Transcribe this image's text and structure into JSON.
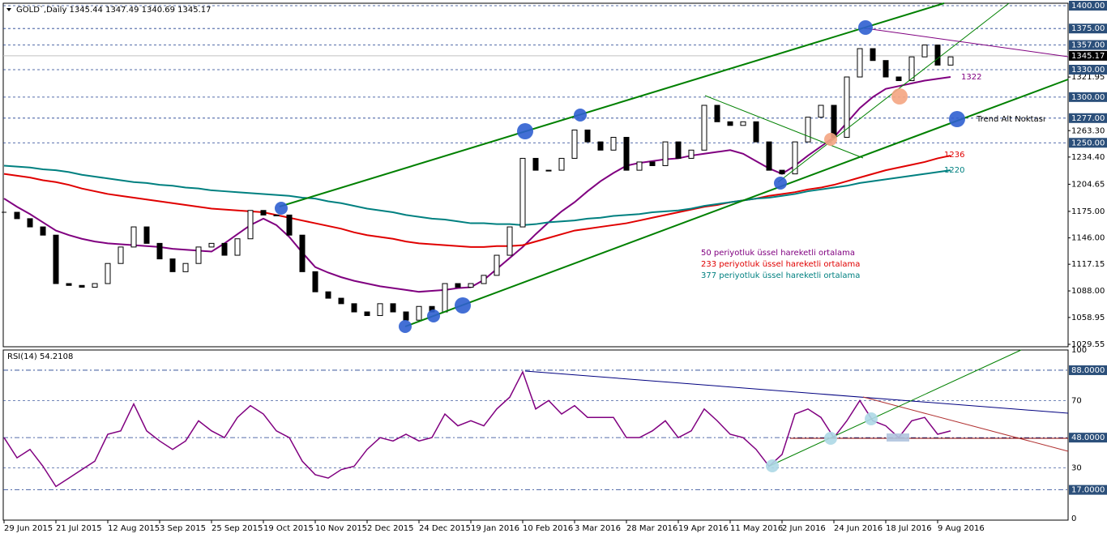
{
  "chart_data": [
    {
      "type": "candlestick",
      "title": "GOLD`,Daily  1345.44 1347.49 1340.69 1345.17",
      "values": [
        1174,
        1167,
        1158,
        1149,
        1096,
        1094,
        1092,
        1096,
        1118,
        1136,
        1158,
        1140,
        1123,
        1109,
        1118,
        1136,
        1140,
        1127,
        1145,
        1176,
        1171,
        1171,
        1149,
        1109,
        1087,
        1080,
        1074,
        1065,
        1061,
        1074,
        1065,
        1056,
        1071,
        1065,
        1096,
        1092,
        1096,
        1105,
        1127,
        1158,
        1233,
        1220,
        1220,
        1233,
        1264,
        1251,
        1242,
        1256,
        1220,
        1229,
        1225,
        1251,
        1233,
        1242,
        1291,
        1273,
        1269,
        1273,
        1251,
        1220,
        1216,
        1251,
        1278,
        1291,
        1256,
        1322,
        1353,
        1340,
        1322,
        1318,
        1344,
        1357,
        1335,
        1344
      ],
      "series": [
        {
          "name": "50 periyotluk üssel hareketli ortalama",
          "color": "#800080",
          "values": [
            1189,
            1180,
            1172,
            1163,
            1154,
            1149,
            1145,
            1142,
            1140,
            1139,
            1138,
            1137,
            1136,
            1134,
            1133,
            1132,
            1131,
            1140,
            1150,
            1160,
            1167,
            1160,
            1147,
            1130,
            1114,
            1108,
            1103,
            1099,
            1096,
            1093,
            1091,
            1089,
            1087,
            1088,
            1089,
            1091,
            1092,
            1100,
            1112,
            1124,
            1136,
            1150,
            1163,
            1175,
            1185,
            1197,
            1208,
            1217,
            1225,
            1228,
            1230,
            1232,
            1233,
            1236,
            1238,
            1240,
            1242,
            1238,
            1230,
            1222,
            1216,
            1225,
            1236,
            1246,
            1256,
            1272,
            1288,
            1300,
            1309,
            1312,
            1315,
            1318,
            1320,
            1322
          ]
        },
        {
          "name": "233  periyotluk üssel hareketli ortalama",
          "color": "#e00000",
          "values": [
            1216,
            1214,
            1212,
            1209,
            1207,
            1204,
            1200,
            1197,
            1194,
            1192,
            1190,
            1188,
            1186,
            1184,
            1182,
            1180,
            1178,
            1177,
            1176,
            1175,
            1174,
            1171,
            1168,
            1165,
            1162,
            1159,
            1156,
            1152,
            1149,
            1147,
            1145,
            1142,
            1140,
            1139,
            1138,
            1137,
            1136,
            1136,
            1137,
            1137,
            1138,
            1142,
            1146,
            1150,
            1154,
            1156,
            1158,
            1160,
            1162,
            1165,
            1168,
            1171,
            1174,
            1177,
            1180,
            1182,
            1185,
            1187,
            1189,
            1192,
            1194,
            1196,
            1199,
            1201,
            1204,
            1208,
            1212,
            1216,
            1220,
            1223,
            1226,
            1229,
            1233,
            1236
          ]
        },
        {
          "name": "377  periyotluk üssel hareketli ortalama",
          "color": "#008080",
          "values": [
            1225,
            1224,
            1223,
            1221,
            1220,
            1218,
            1215,
            1213,
            1211,
            1209,
            1207,
            1206,
            1204,
            1203,
            1201,
            1200,
            1198,
            1197,
            1196,
            1195,
            1194,
            1193,
            1192,
            1190,
            1189,
            1186,
            1184,
            1181,
            1178,
            1176,
            1174,
            1171,
            1169,
            1167,
            1166,
            1164,
            1162,
            1162,
            1161,
            1161,
            1160,
            1161,
            1163,
            1164,
            1165,
            1167,
            1168,
            1170,
            1171,
            1172,
            1174,
            1175,
            1176,
            1178,
            1181,
            1183,
            1185,
            1187,
            1189,
            1190,
            1192,
            1194,
            1197,
            1199,
            1201,
            1203,
            1206,
            1208,
            1210,
            1212,
            1214,
            1216,
            1218,
            1220
          ]
        }
      ],
      "ylim": [
        1026.9,
        1402.66
      ],
      "yticks": [
        {
          "value": 1321.95,
          "label": "1321.95"
        },
        {
          "value": 1263.3,
          "label": "1263.30"
        },
        {
          "value": 1234.4,
          "label": "1234.40"
        },
        {
          "value": 1204.65,
          "label": "1204.65"
        },
        {
          "value": 1175,
          "label": "1175.00"
        },
        {
          "value": 1146,
          "label": "1146.00"
        },
        {
          "value": 1117.15,
          "label": "1117.15"
        },
        {
          "value": 1088,
          "label": "1088.00"
        },
        {
          "value": 1058.95,
          "label": "1058.95"
        },
        {
          "value": 1029.55,
          "label": "1029.55"
        }
      ],
      "levels": [
        {
          "value": 1400,
          "label": "1400.00"
        },
        {
          "value": 1375,
          "label": "1375.00"
        },
        {
          "value": 1357,
          "label": "1357.00"
        },
        {
          "value": 1330,
          "label": "1330.00"
        },
        {
          "value": 1300,
          "label": "1300.00"
        },
        {
          "value": 1277,
          "label": "1277.00"
        },
        {
          "value": 1250,
          "label": "1250.00"
        }
      ],
      "current": {
        "value": 1345.17,
        "label": "1345.17"
      },
      "annotation": "Trend Alt Noktası"
    },
    {
      "type": "line",
      "title": "RSI(14) 54.2108",
      "color": "#800080",
      "categories": [
        "29 Jun 2015",
        null,
        null,
        null,
        "21 Jul 2015",
        null,
        null,
        null,
        "12 Aug 2015",
        null,
        null,
        null,
        "3 Sep 2015",
        null,
        null,
        null,
        "25 Sep 2015",
        null,
        null,
        null,
        "19 Oct 2015",
        null,
        null,
        null,
        "10 Nov 2015",
        null,
        null,
        null,
        "2 Dec 2015",
        null,
        null,
        null,
        "24 Dec 2015",
        null,
        null,
        null,
        "19 Jan 2016",
        null,
        null,
        null,
        "10 Feb 2016",
        null,
        null,
        null,
        "3 Mar 2016",
        null,
        null,
        null,
        "28 Mar 2016",
        null,
        null,
        null,
        "19 Apr 2016",
        null,
        null,
        null,
        "11 May 2016",
        null,
        null,
        null,
        "2 Jun 2016",
        null,
        null,
        null,
        "24 Jun 2016",
        null,
        null,
        null,
        "18 Jul 2016",
        null,
        null,
        null,
        "9 Aug 2016",
        null
      ],
      "values": [
        48,
        36,
        41,
        31,
        19,
        24,
        29,
        34,
        50,
        52,
        68,
        52,
        46,
        41,
        46,
        58,
        52,
        48,
        60,
        67,
        62,
        52,
        48,
        34,
        26,
        24,
        29,
        31,
        41,
        48,
        46,
        50,
        46,
        48,
        62,
        55,
        58,
        55,
        65,
        72,
        87,
        65,
        70,
        62,
        67,
        60,
        60,
        60,
        48,
        48,
        52,
        58,
        48,
        52,
        65,
        58,
        50,
        48,
        41,
        31,
        38,
        62,
        65,
        60,
        48,
        58,
        70,
        58,
        55,
        48,
        58,
        60,
        50,
        52
      ],
      "ylim": [
        0,
        100
      ],
      "yticks": [
        100,
        70,
        30,
        0
      ],
      "levels": [
        {
          "value": 88,
          "label": "88.0000"
        },
        {
          "value": 48,
          "label": "48.0000"
        },
        {
          "value": 17,
          "label": "17.0000"
        }
      ]
    }
  ]
}
